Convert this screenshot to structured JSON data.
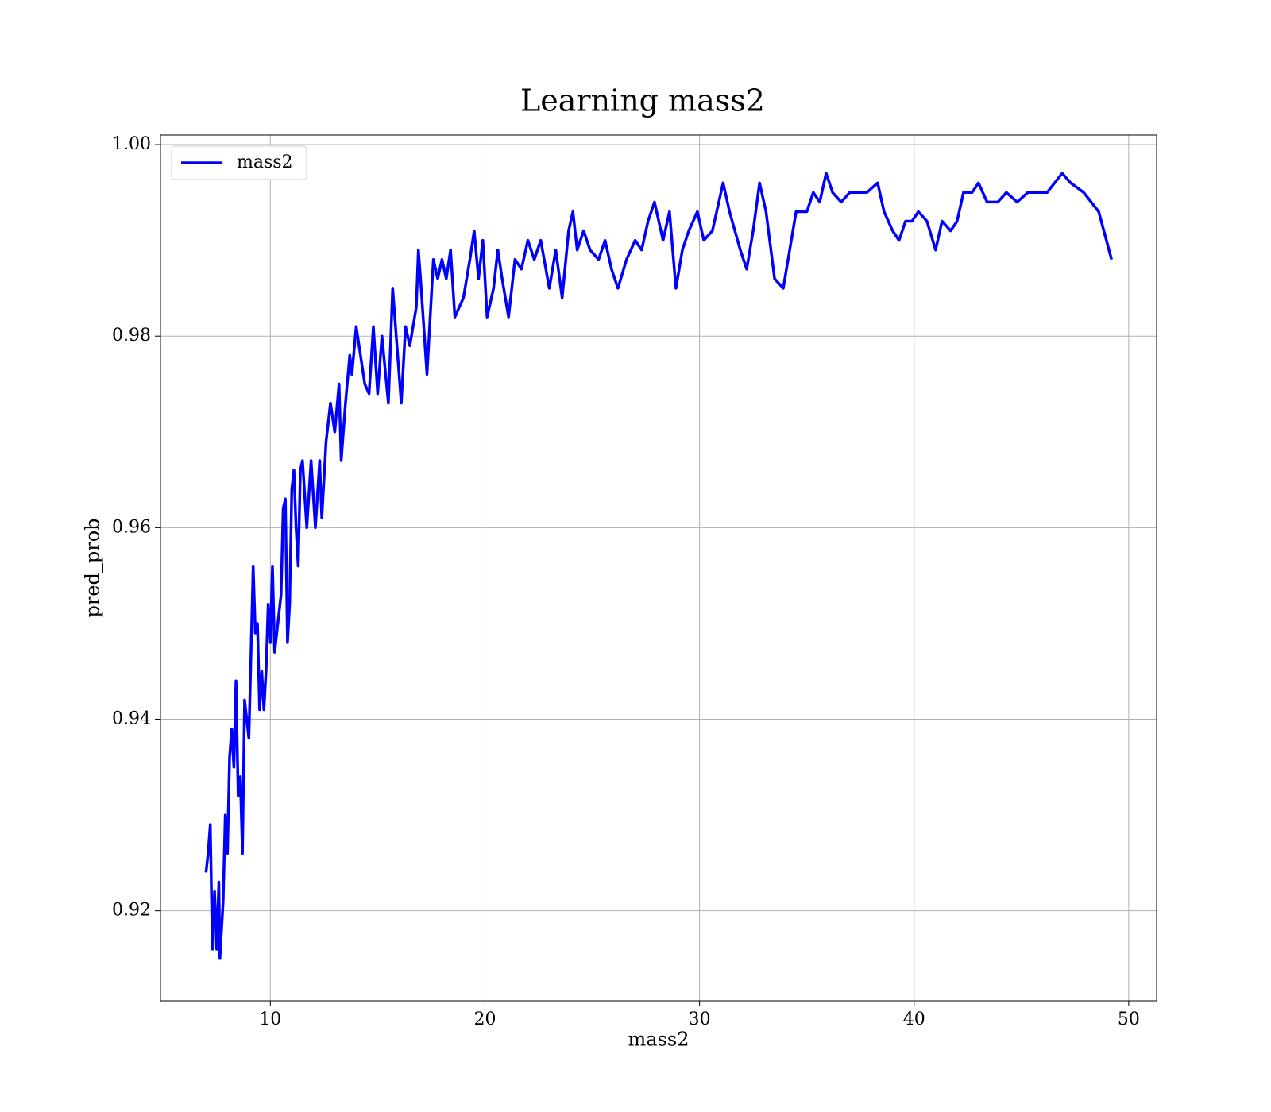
{
  "chart_data": {
    "type": "line",
    "title": "Learning mass2",
    "x_label": "mass2",
    "y_label": "pred_prob",
    "grid": true,
    "legend": "upper left",
    "xlim": [
      4.88,
      51.3
    ],
    "ylim": [
      0.9106,
      1.001
    ],
    "xticks": [
      10,
      20,
      30,
      40,
      50
    ],
    "yticks": [
      {
        "value": 0.92,
        "label": "0.92"
      },
      {
        "value": 0.94,
        "label": "0.94"
      },
      {
        "value": 0.96,
        "label": "0.96"
      },
      {
        "value": 0.98,
        "label": "0.98"
      },
      {
        "value": 1.0,
        "label": "1.00"
      }
    ],
    "x": [
      7.0,
      7.1,
      7.2,
      7.3,
      7.4,
      7.5,
      7.6,
      7.65,
      7.8,
      7.9,
      8.0,
      8.1,
      8.2,
      8.3,
      8.4,
      8.5,
      8.6,
      8.7,
      8.8,
      9.0,
      9.1,
      9.2,
      9.3,
      9.4,
      9.5,
      9.6,
      9.7,
      9.8,
      9.9,
      10.0,
      10.1,
      10.2,
      10.4,
      10.5,
      10.6,
      10.7,
      10.8,
      10.9,
      11.0,
      11.1,
      11.2,
      11.3,
      11.4,
      11.5,
      11.7,
      11.9,
      12.1,
      12.3,
      12.4,
      12.6,
      12.8,
      13.0,
      13.2,
      13.3,
      13.5,
      13.7,
      13.8,
      14.0,
      14.2,
      14.4,
      14.6,
      14.8,
      15.0,
      15.2,
      15.5,
      15.7,
      15.9,
      16.1,
      16.3,
      16.5,
      16.8,
      16.9,
      17.0,
      17.3,
      17.6,
      17.8,
      18.0,
      18.2,
      18.4,
      18.6,
      19.0,
      19.3,
      19.5,
      19.7,
      19.9,
      20.1,
      20.4,
      20.6,
      20.8,
      21.1,
      21.4,
      21.7,
      22.0,
      22.3,
      22.6,
      23.0,
      23.3,
      23.6,
      23.9,
      24.1,
      24.3,
      24.6,
      24.9,
      25.3,
      25.6,
      25.9,
      26.2,
      26.6,
      27.0,
      27.3,
      27.6,
      27.9,
      28.3,
      28.6,
      28.9,
      29.2,
      29.5,
      29.9,
      30.2,
      30.6,
      31.1,
      31.4,
      31.9,
      32.2,
      32.5,
      32.8,
      33.1,
      33.5,
      33.9,
      34.2,
      34.5,
      35.0,
      35.3,
      35.6,
      35.9,
      36.2,
      36.6,
      37.0,
      37.4,
      37.8,
      38.3,
      38.6,
      39.0,
      39.3,
      39.6,
      39.9,
      40.2,
      40.6,
      41.0,
      41.3,
      41.7,
      42.0,
      42.3,
      42.7,
      43.0,
      43.4,
      43.9,
      44.3,
      44.8,
      45.3,
      45.7,
      46.2,
      46.9,
      47.3,
      47.9,
      48.6,
      49.2
    ],
    "series": [
      {
        "name": "mass2",
        "color": "#0000ff",
        "values": [
          0.924,
          0.926,
          0.929,
          0.916,
          0.922,
          0.916,
          0.923,
          0.915,
          0.921,
          0.93,
          0.926,
          0.936,
          0.939,
          0.935,
          0.944,
          0.932,
          0.934,
          0.926,
          0.942,
          0.938,
          0.947,
          0.956,
          0.949,
          0.95,
          0.941,
          0.945,
          0.941,
          0.945,
          0.952,
          0.948,
          0.956,
          0.947,
          0.951,
          0.953,
          0.962,
          0.963,
          0.948,
          0.952,
          0.964,
          0.966,
          0.96,
          0.956,
          0.966,
          0.967,
          0.96,
          0.967,
          0.96,
          0.967,
          0.961,
          0.969,
          0.973,
          0.97,
          0.975,
          0.967,
          0.973,
          0.978,
          0.976,
          0.981,
          0.978,
          0.975,
          0.974,
          0.981,
          0.974,
          0.98,
          0.973,
          0.985,
          0.979,
          0.973,
          0.981,
          0.979,
          0.983,
          0.989,
          0.986,
          0.976,
          0.988,
          0.986,
          0.988,
          0.986,
          0.989,
          0.982,
          0.984,
          0.988,
          0.991,
          0.986,
          0.99,
          0.982,
          0.985,
          0.989,
          0.986,
          0.982,
          0.988,
          0.987,
          0.99,
          0.988,
          0.99,
          0.985,
          0.989,
          0.984,
          0.991,
          0.993,
          0.989,
          0.991,
          0.989,
          0.988,
          0.99,
          0.987,
          0.985,
          0.988,
          0.99,
          0.989,
          0.992,
          0.994,
          0.99,
          0.993,
          0.985,
          0.989,
          0.991,
          0.993,
          0.99,
          0.991,
          0.996,
          0.993,
          0.989,
          0.987,
          0.991,
          0.996,
          0.993,
          0.986,
          0.985,
          0.989,
          0.993,
          0.993,
          0.995,
          0.994,
          0.997,
          0.995,
          0.994,
          0.995,
          0.995,
          0.995,
          0.996,
          0.993,
          0.991,
          0.99,
          0.992,
          0.992,
          0.993,
          0.992,
          0.989,
          0.992,
          0.991,
          0.992,
          0.995,
          0.995,
          0.996,
          0.994,
          0.994,
          0.995,
          0.994,
          0.995,
          0.995,
          0.995,
          0.997,
          0.996,
          0.995,
          0.993,
          0.988
        ]
      }
    ]
  }
}
